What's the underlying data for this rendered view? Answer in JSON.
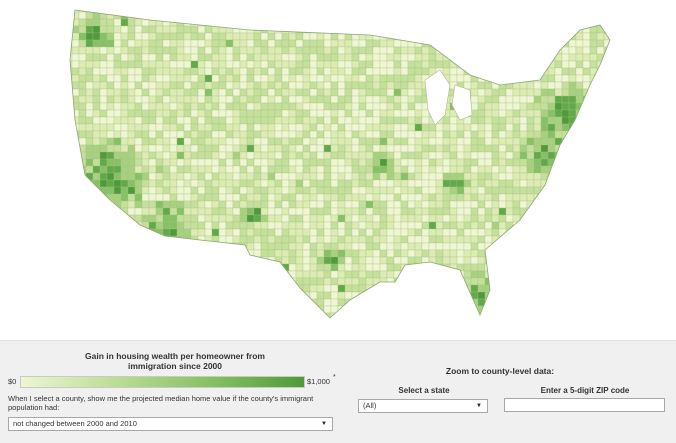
{
  "legend": {
    "title": "Gain in housing wealth per homeowner from immigration since 2000",
    "min_label": "$0",
    "max_label": "$1,000",
    "max_marker": "*",
    "color_low": "#eef6d2",
    "color_high": "#4f9a3a"
  },
  "question": {
    "text": "When I select a county, show me the projected median home value if the county's immigrant population had:",
    "selected": "not changed between 2000 and 2010"
  },
  "zoom": {
    "title": "Zoom to county-level data:",
    "state_label": "Select a state",
    "state_selected": "(All)",
    "zip_label": "Enter a 5-digit ZIP code",
    "zip_value": ""
  },
  "map": {
    "land_color": "#e3efc4",
    "border_color": "#a9bc8a",
    "shades": [
      "#eef6d2",
      "#dcecb3",
      "#c4e09a",
      "#a7d17f",
      "#86c165",
      "#62a94a",
      "#4f9a3a"
    ]
  }
}
